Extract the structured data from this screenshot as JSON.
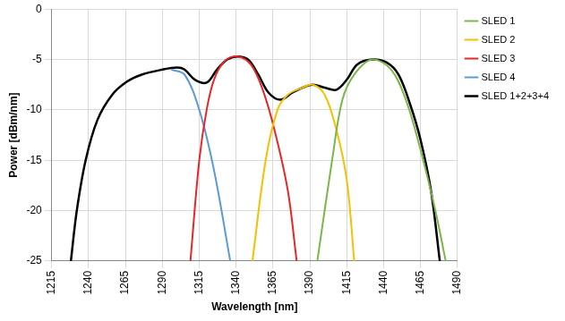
{
  "chart_data": {
    "type": "line",
    "x_label": "Wavelength [nm]",
    "y_label": "Power [dBm/nm]",
    "xlim": [
      1215,
      1490
    ],
    "xticks": [
      1215,
      1240,
      1265,
      1290,
      1315,
      1340,
      1365,
      1390,
      1415,
      1440,
      1465,
      1490
    ],
    "ylim": [
      -25,
      0
    ],
    "yticks": [
      -25,
      -20,
      -15,
      -10,
      -5,
      0
    ],
    "grid": true,
    "legend": "right",
    "series": [
      {
        "name": "SLED 1",
        "color": "#7ab648",
        "x": [
          1395,
          1405,
          1412,
          1420,
          1432,
          1445,
          1455,
          1465,
          1475,
          1482
        ],
        "values": [
          -25,
          -15,
          -9,
          -6.5,
          -5,
          -6,
          -9,
          -14,
          -20,
          -25
        ]
      },
      {
        "name": "SLED 2",
        "color": "#f5c000",
        "x": [
          1351,
          1360,
          1368,
          1375,
          1385,
          1392,
          1400,
          1408,
          1415,
          1420
        ],
        "values": [
          -25,
          -15,
          -10,
          -8.5,
          -7.8,
          -7.5,
          -8.5,
          -12,
          -17,
          -25
        ]
      },
      {
        "name": "SLED 3",
        "color": "#e8262a",
        "x": [
          1309,
          1315,
          1320,
          1325,
          1332,
          1341,
          1350,
          1358,
          1366,
          1375,
          1381
        ],
        "values": [
          -25,
          -15,
          -10,
          -7,
          -5.2,
          -4.7,
          -5.5,
          -8,
          -12,
          -18,
          -25
        ]
      },
      {
        "name": "SLED 4",
        "color": "#5b9bd5",
        "x": [
          1296,
          1305,
          1315,
          1325,
          1336
        ],
        "values": [
          -6,
          -6.5,
          -10,
          -16,
          -25
        ]
      },
      {
        "name": "SLED 1+2+3+4",
        "color": "#000000",
        "x": [
          1228,
          1232,
          1238,
          1246,
          1256,
          1266,
          1276,
          1290,
          1300,
          1305,
          1312,
          1320,
          1327,
          1334,
          1341,
          1348,
          1355,
          1362,
          1370,
          1378,
          1385,
          1392,
          1400,
          1408,
          1415,
          1422,
          1432,
          1442,
          1450,
          1458,
          1465,
          1472,
          1478
        ],
        "values": [
          -25,
          -20,
          -15,
          -11,
          -8.5,
          -7.2,
          -6.5,
          -6,
          -5.8,
          -6,
          -7,
          -7.3,
          -6,
          -5,
          -4.7,
          -5,
          -6.5,
          -8.3,
          -9,
          -8.3,
          -7.8,
          -7.5,
          -7.8,
          -8,
          -7,
          -5.5,
          -5,
          -5.3,
          -6.5,
          -9.5,
          -13,
          -18,
          -25
        ]
      }
    ]
  }
}
